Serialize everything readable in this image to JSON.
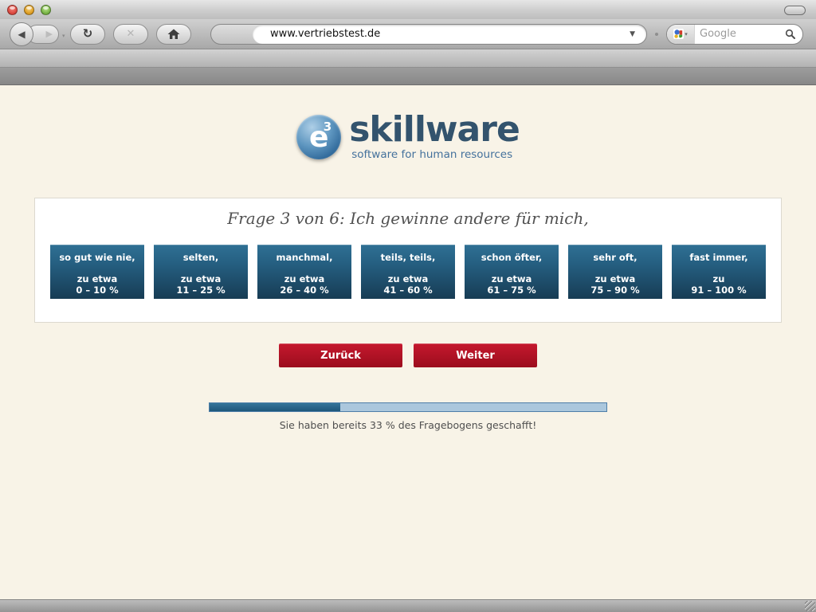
{
  "browser": {
    "window_controls": {
      "close": "close",
      "minimize": "minimize",
      "zoom": "zoom"
    },
    "nav": {
      "back_glyph": "◀",
      "forward_glyph": "▶",
      "reload_glyph": "↻",
      "stop_glyph": "✕",
      "dropdown_glyph": "▾",
      "url_dropdown_glyph": "▼"
    },
    "url": "www.vertriebstest.de",
    "search": {
      "placeholder": "Google"
    }
  },
  "logo": {
    "symbol": "e",
    "exponent": "3",
    "name": "skillware",
    "tagline": "software for human resources"
  },
  "question": {
    "title": "Frage 3 von 6: Ich gewinne andere für mich,"
  },
  "answers": [
    {
      "line1": "so gut wie nie,",
      "line2": "zu etwa",
      "line3": "0 – 10 %"
    },
    {
      "line1": "selten,",
      "line2": "zu etwa",
      "line3": "11 – 25 %"
    },
    {
      "line1": "manchmal,",
      "line2": "zu etwa",
      "line3": "26 – 40 %"
    },
    {
      "line1": "teils, teils,",
      "line2": "zu etwa",
      "line3": "41 – 60 %"
    },
    {
      "line1": "schon öfter,",
      "line2": "zu etwa",
      "line3": "61 – 75 %"
    },
    {
      "line1": "sehr oft,",
      "line2": "zu etwa",
      "line3": "75 – 90 %"
    },
    {
      "line1": "fast immer,",
      "line2": "zu",
      "line3": "91 – 100 %"
    }
  ],
  "actions": {
    "back_label": "Zurück",
    "next_label": "Weiter"
  },
  "progress": {
    "percent": 33,
    "caption": "Sie haben bereits 33 % des Fragebogens geschafft!"
  },
  "colors": {
    "page_background": "#f8f3e7",
    "answer_button_top": "#2f7094",
    "answer_button_bottom": "#173c54",
    "action_button_top": "#c5182e",
    "action_button_bottom": "#9c0d1d",
    "progress_border": "#4e7ea8",
    "progress_track": "#abc7dd",
    "progress_fill": "#1f567a",
    "logo_navy": "#33536d",
    "logo_blue": "#44719c"
  }
}
